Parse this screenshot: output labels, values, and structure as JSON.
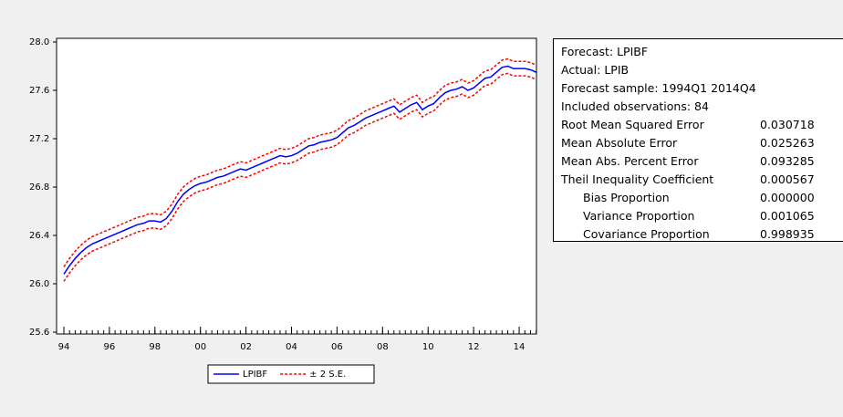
{
  "chart_data": {
    "type": "line",
    "x": [
      1994,
      1994.25,
      1994.5,
      1994.75,
      1995,
      1995.25,
      1995.5,
      1995.75,
      1996,
      1996.25,
      1996.5,
      1996.75,
      1997,
      1997.25,
      1997.5,
      1997.75,
      1998,
      1998.25,
      1998.5,
      1998.75,
      1999,
      1999.25,
      1999.5,
      1999.75,
      2000,
      2000.25,
      2000.5,
      2000.75,
      2001,
      2001.25,
      2001.5,
      2001.75,
      2002,
      2002.25,
      2002.5,
      2002.75,
      2003,
      2003.25,
      2003.5,
      2003.75,
      2004,
      2004.25,
      2004.5,
      2004.75,
      2005,
      2005.25,
      2005.5,
      2005.75,
      2006,
      2006.25,
      2006.5,
      2006.75,
      2007,
      2007.25,
      2007.5,
      2007.75,
      2008,
      2008.25,
      2008.5,
      2008.75,
      2009,
      2009.25,
      2009.5,
      2009.75,
      2010,
      2010.25,
      2010.5,
      2010.75,
      2011,
      2011.25,
      2011.5,
      2011.75,
      2012,
      2012.25,
      2012.5,
      2012.75,
      2013,
      2013.25,
      2013.5,
      2013.75,
      2014,
      2014.25,
      2014.5,
      2014.75
    ],
    "series": [
      {
        "name": "LPIBF",
        "color": "#0000ff",
        "values": [
          26.08,
          26.15,
          26.21,
          26.26,
          26.3,
          26.33,
          26.35,
          26.37,
          26.39,
          26.41,
          26.43,
          26.45,
          26.47,
          26.49,
          26.5,
          26.52,
          26.52,
          26.51,
          26.54,
          26.6,
          26.68,
          26.74,
          26.78,
          26.81,
          26.83,
          26.84,
          26.86,
          26.88,
          26.89,
          26.91,
          26.93,
          26.95,
          26.94,
          26.96,
          26.98,
          27.0,
          27.02,
          27.04,
          27.06,
          27.05,
          27.06,
          27.08,
          27.11,
          27.14,
          27.15,
          27.17,
          27.18,
          27.19,
          27.21,
          27.25,
          27.29,
          27.31,
          27.34,
          27.37,
          27.39,
          27.41,
          27.43,
          27.45,
          27.47,
          27.42,
          27.45,
          27.48,
          27.5,
          27.44,
          27.47,
          27.49,
          27.54,
          27.58,
          27.6,
          27.61,
          27.63,
          27.6,
          27.62,
          27.66,
          27.7,
          27.71,
          27.75,
          27.79,
          27.8,
          27.78,
          27.78,
          27.78,
          27.77,
          27.75
        ]
      },
      {
        "name": "± 2 S.E.",
        "color": "#ff0000",
        "upper": [
          26.14,
          26.21,
          26.27,
          26.32,
          26.36,
          26.39,
          26.41,
          26.43,
          26.45,
          26.47,
          26.49,
          26.51,
          26.53,
          26.55,
          26.56,
          26.58,
          26.58,
          26.57,
          26.6,
          26.66,
          26.74,
          26.8,
          26.84,
          26.87,
          26.89,
          26.9,
          26.92,
          26.94,
          26.95,
          26.97,
          26.99,
          27.01,
          27.0,
          27.02,
          27.04,
          27.06,
          27.08,
          27.1,
          27.12,
          27.11,
          27.12,
          27.14,
          27.17,
          27.2,
          27.21,
          27.23,
          27.24,
          27.25,
          27.27,
          27.31,
          27.35,
          27.37,
          27.4,
          27.43,
          27.45,
          27.47,
          27.49,
          27.51,
          27.53,
          27.48,
          27.51,
          27.54,
          27.56,
          27.5,
          27.53,
          27.55,
          27.6,
          27.64,
          27.66,
          27.67,
          27.69,
          27.66,
          27.68,
          27.72,
          27.76,
          27.77,
          27.81,
          27.85,
          27.86,
          27.84,
          27.84,
          27.84,
          27.83,
          27.81
        ],
        "lower": [
          26.02,
          26.09,
          26.15,
          26.2,
          26.24,
          26.27,
          26.29,
          26.31,
          26.33,
          26.35,
          26.37,
          26.39,
          26.41,
          26.43,
          26.44,
          26.46,
          26.46,
          26.45,
          26.48,
          26.54,
          26.62,
          26.68,
          26.72,
          26.75,
          26.77,
          26.78,
          26.8,
          26.82,
          26.83,
          26.85,
          26.87,
          26.89,
          26.88,
          26.9,
          26.92,
          26.94,
          26.96,
          26.98,
          27.0,
          26.99,
          27.0,
          27.02,
          27.05,
          27.08,
          27.09,
          27.11,
          27.12,
          27.13,
          27.15,
          27.19,
          27.23,
          27.25,
          27.28,
          27.31,
          27.33,
          27.35,
          27.37,
          27.39,
          27.41,
          27.36,
          27.39,
          27.42,
          27.44,
          27.38,
          27.41,
          27.43,
          27.48,
          27.52,
          27.54,
          27.55,
          27.57,
          27.54,
          27.56,
          27.6,
          27.64,
          27.65,
          27.69,
          27.73,
          27.74,
          27.72,
          27.72,
          27.72,
          27.71,
          27.69
        ]
      }
    ],
    "xlim": [
      1993.68,
      2014.76
    ],
    "ylim": [
      25.6,
      28.0
    ],
    "xticks": [
      {
        "value": 1994,
        "label": "94"
      },
      {
        "value": 1996,
        "label": "96"
      },
      {
        "value": 1998,
        "label": "98"
      },
      {
        "value": 2000,
        "label": "00"
      },
      {
        "value": 2002,
        "label": "02"
      },
      {
        "value": 2004,
        "label": "04"
      },
      {
        "value": 2006,
        "label": "06"
      },
      {
        "value": 2008,
        "label": "08"
      },
      {
        "value": 2010,
        "label": "10"
      },
      {
        "value": 2012,
        "label": "12"
      },
      {
        "value": 2014,
        "label": "14"
      }
    ],
    "yticks": [
      {
        "value": 25.6,
        "label": "25.6"
      },
      {
        "value": 26.0,
        "label": "26.0"
      },
      {
        "value": 26.4,
        "label": "26.4"
      },
      {
        "value": 26.8,
        "label": "26.8"
      },
      {
        "value": 27.2,
        "label": "27.2"
      },
      {
        "value": 27.6,
        "label": "27.6"
      },
      {
        "value": 28.0,
        "label": "28.0"
      }
    ],
    "legend": "bottom"
  },
  "stats": {
    "lines": [
      "Forecast: LPIBF",
      "Actual: LPIB",
      "Forecast sample: 1994Q1 2014Q4",
      "Included observations: 84"
    ],
    "rows": [
      {
        "label": "Root Mean Squared Error",
        "value": "0.030718",
        "indent": false
      },
      {
        "label": "Mean Absolute Error",
        "value": "0.025263",
        "indent": false
      },
      {
        "label": "Mean Abs. Percent Error",
        "value": "0.093285",
        "indent": false
      },
      {
        "label": "Theil Inequality Coefficient",
        "value": "0.000567",
        "indent": false
      },
      {
        "label": "Bias Proportion",
        "value": "0.000000",
        "indent": true
      },
      {
        "label": "Variance Proportion",
        "value": "0.001065",
        "indent": true
      },
      {
        "label": "Covariance Proportion",
        "value": "0.998935",
        "indent": true
      }
    ]
  }
}
